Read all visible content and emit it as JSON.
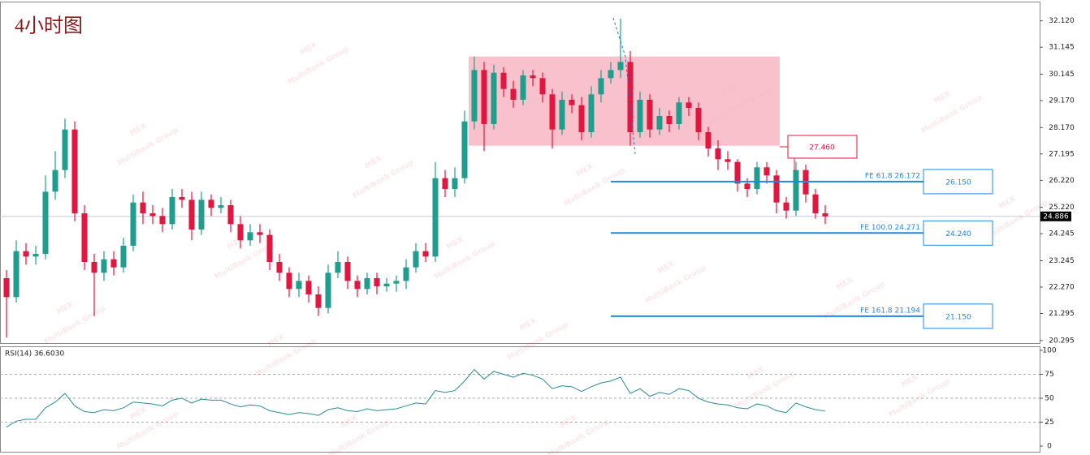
{
  "chart_data": {
    "type": "candlestick",
    "title": "4小时图",
    "watermark": {
      "logo": "MEX",
      "text": "MultiBank Group"
    },
    "colors": {
      "up": "#1f9e8e",
      "down": "#e3163f",
      "zone": "#f7b6c2",
      "level": "#1e88e5",
      "resistance": "#e3163f"
    },
    "ylim": [
      20.2,
      32.8
    ],
    "yticks": [
      {
        "value": 32.12,
        "label": "32.120"
      },
      31.145,
      30.145,
      {
        "value": 29.17,
        "label": "29.170"
      },
      {
        "value": 28.17,
        "label": "28.170"
      },
      27.195,
      {
        "value": 26.22,
        "label": "26.220"
      },
      {
        "value": 25.22,
        "label": "25.220"
      },
      24.245,
      23.245,
      {
        "value": 22.27,
        "label": "22.270"
      },
      21.295,
      20.295
    ],
    "last_price": 24.886,
    "open": [
      22.6,
      21.9,
      23.6,
      23.4,
      23.5,
      25.8,
      26.6,
      28.1,
      25.0,
      23.2,
      22.8,
      23.3,
      23.0,
      23.8,
      25.4,
      25.0,
      24.9,
      24.6,
      25.6,
      25.5,
      24.4,
      25.5,
      25.2,
      25.3,
      24.6,
      24.0,
      24.3,
      24.2,
      23.2,
      22.8,
      22.2,
      22.5,
      22.0,
      21.5,
      22.8,
      23.2,
      22.5,
      22.2,
      22.6,
      22.3,
      22.4,
      22.5,
      23.0,
      23.6,
      23.4,
      26.3,
      25.9,
      26.3,
      28.4,
      30.3,
      28.3,
      30.2,
      29.6,
      29.2,
      30.1,
      30.0,
      29.4,
      28.1,
      29.2,
      29.0,
      28.0,
      29.4,
      30.0,
      30.3,
      30.6,
      28.0,
      29.2,
      28.1,
      28.6,
      28.3,
      29.1,
      28.9,
      28.0,
      27.4,
      27.0,
      26.9,
      26.1,
      25.9,
      26.7,
      26.4,
      25.4,
      25.1,
      26.6,
      25.7,
      25.0
    ],
    "high": [
      22.9,
      24.0,
      23.9,
      23.8,
      26.4,
      27.3,
      28.5,
      28.4,
      25.3,
      23.5,
      23.6,
      23.6,
      24.1,
      25.7,
      25.8,
      25.3,
      25.2,
      25.9,
      25.9,
      25.8,
      25.8,
      25.7,
      25.6,
      25.5,
      24.9,
      24.6,
      24.6,
      24.4,
      23.5,
      23.0,
      22.8,
      22.7,
      22.3,
      23.1,
      23.6,
      23.4,
      22.7,
      22.8,
      22.8,
      22.6,
      22.7,
      23.3,
      23.9,
      23.9,
      26.9,
      26.6,
      26.7,
      28.8,
      30.8,
      30.6,
      30.5,
      30.4,
      29.9,
      30.3,
      30.3,
      30.2,
      29.6,
      29.5,
      29.4,
      29.3,
      29.7,
      30.3,
      30.6,
      32.2,
      31.0,
      29.5,
      29.4,
      28.9,
      28.8,
      29.3,
      29.3,
      29.1,
      28.2,
      27.7,
      27.3,
      27.0,
      26.3,
      26.9,
      26.9,
      26.6,
      25.6,
      26.9,
      26.8,
      25.9,
      25.3
    ],
    "low": [
      20.4,
      21.7,
      23.1,
      23.1,
      23.3,
      25.5,
      26.3,
      24.7,
      22.9,
      21.2,
      22.5,
      22.7,
      22.8,
      23.6,
      24.6,
      24.6,
      24.3,
      24.4,
      25.2,
      24.0,
      24.2,
      24.9,
      25.0,
      24.3,
      23.7,
      23.8,
      23.9,
      22.9,
      22.5,
      21.9,
      21.9,
      21.7,
      21.2,
      21.3,
      22.6,
      22.2,
      21.9,
      22.0,
      22.0,
      22.1,
      22.1,
      22.2,
      22.8,
      23.2,
      23.2,
      25.6,
      25.6,
      26.1,
      28.1,
      27.3,
      28.1,
      29.3,
      28.9,
      29.0,
      29.7,
      29.1,
      27.4,
      27.9,
      28.7,
      27.7,
      27.8,
      29.1,
      29.8,
      30.0,
      27.5,
      27.8,
      27.8,
      27.9,
      28.0,
      28.1,
      28.6,
      27.7,
      27.1,
      26.6,
      26.6,
      25.8,
      25.6,
      25.7,
      26.1,
      25.0,
      24.8,
      24.9,
      25.4,
      24.8,
      24.6
    ],
    "close": [
      21.9,
      23.6,
      23.4,
      23.5,
      25.8,
      26.6,
      28.1,
      25.0,
      23.2,
      22.8,
      23.3,
      23.0,
      23.8,
      25.4,
      25.0,
      24.9,
      24.6,
      25.6,
      25.5,
      24.4,
      25.5,
      25.2,
      25.3,
      24.6,
      24.0,
      24.3,
      24.2,
      23.2,
      22.8,
      22.2,
      22.5,
      22.0,
      21.5,
      22.8,
      23.2,
      22.5,
      22.2,
      22.6,
      22.3,
      22.4,
      22.5,
      23.0,
      23.6,
      23.4,
      26.3,
      25.9,
      26.3,
      28.4,
      30.3,
      28.3,
      30.2,
      29.6,
      29.2,
      30.1,
      30.0,
      29.4,
      28.1,
      29.2,
      29.0,
      28.0,
      29.4,
      30.0,
      30.3,
      30.6,
      28.0,
      29.2,
      28.1,
      28.6,
      28.3,
      29.1,
      28.9,
      28.0,
      27.4,
      27.0,
      26.9,
      26.1,
      25.9,
      26.7,
      26.4,
      25.4,
      25.1,
      26.6,
      25.7,
      25.0,
      24.886
    ],
    "zone": [
      27.5,
      30.8
    ],
    "resistance": {
      "value": 27.46,
      "label": "27.460"
    },
    "levels": [
      {
        "value": 26.172,
        "label": "FE 61.8  26.172",
        "target": "26.150"
      },
      {
        "value": 24.271,
        "label": "FE 100.0  24.271",
        "target": "24.240"
      },
      {
        "value": 21.194,
        "label": "FE 161.8  21.194",
        "target": "21.150"
      }
    ],
    "rsi": {
      "label": "RSI(14) 36.6030",
      "color": "#2a8a99",
      "ylim": [
        0,
        100
      ],
      "yticks": [
        0,
        25,
        50,
        75,
        100
      ],
      "levels": [
        25,
        50,
        75
      ],
      "values": [
        20,
        26,
        28,
        28,
        40,
        46,
        55,
        42,
        36,
        35,
        38,
        37,
        40,
        46,
        45,
        44,
        42,
        48,
        50,
        45,
        49,
        48,
        48,
        44,
        41,
        43,
        42,
        37,
        35,
        33,
        35,
        34,
        32,
        38,
        40,
        37,
        36,
        39,
        37,
        38,
        39,
        42,
        45,
        44,
        58,
        56,
        58,
        68,
        80,
        70,
        78,
        75,
        72,
        76,
        74,
        70,
        60,
        63,
        62,
        57,
        62,
        66,
        68,
        72,
        55,
        60,
        52,
        56,
        54,
        60,
        58,
        50,
        46,
        44,
        43,
        40,
        39,
        44,
        42,
        37,
        35,
        45,
        41,
        38,
        36.603
      ]
    }
  }
}
